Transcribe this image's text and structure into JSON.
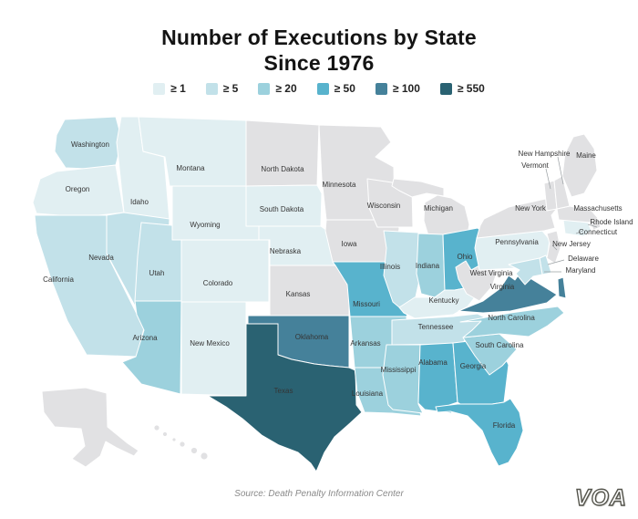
{
  "title": {
    "line1": "Number of Executions by State",
    "line2": "Since 1976"
  },
  "legend": [
    {
      "label": "≥ 1",
      "color": "#e1eff2"
    },
    {
      "label": "≥ 5",
      "color": "#c2e1e9"
    },
    {
      "label": "≥ 20",
      "color": "#9cd1dd"
    },
    {
      "label": "≥ 50",
      "color": "#58b3cd"
    },
    {
      "label": "≥ 100",
      "color": "#45819a"
    },
    {
      "label": "≥ 550",
      "color": "#2a6272"
    }
  ],
  "source": "Source: Death Penalty Information Center",
  "watermark": "VOA",
  "page_background": "#ffffff",
  "chart_data": {
    "type": "choropleth-map",
    "title": "Number of Executions by State Since 1976",
    "legend_buckets": [
      "≥ 1",
      "≥ 5",
      "≥ 20",
      "≥ 50",
      "≥ 100",
      "≥ 550"
    ],
    "no_data_color": "#e1e1e3",
    "border_color": "#ffffff",
    "states": [
      {
        "id": "WA",
        "name": "Washington",
        "bucket": "≥ 5"
      },
      {
        "id": "OR",
        "name": "Oregon",
        "bucket": "≥ 1"
      },
      {
        "id": "CA",
        "name": "California",
        "bucket": "≥ 5"
      },
      {
        "id": "ID",
        "name": "Idaho",
        "bucket": "≥ 1"
      },
      {
        "id": "NV",
        "name": "Nevada",
        "bucket": "≥ 5"
      },
      {
        "id": "UT",
        "name": "Utah",
        "bucket": "≥ 5"
      },
      {
        "id": "AZ",
        "name": "Arizona",
        "bucket": "≥ 20"
      },
      {
        "id": "MT",
        "name": "Montana",
        "bucket": "≥ 1"
      },
      {
        "id": "WY",
        "name": "Wyoming",
        "bucket": "≥ 1"
      },
      {
        "id": "CO",
        "name": "Colorado",
        "bucket": "≥ 1"
      },
      {
        "id": "NM",
        "name": "New Mexico",
        "bucket": "≥ 1"
      },
      {
        "id": "ND",
        "name": "North Dakota",
        "bucket": "none"
      },
      {
        "id": "SD",
        "name": "South Dakota",
        "bucket": "≥ 1"
      },
      {
        "id": "NE",
        "name": "Nebraska",
        "bucket": "≥ 1"
      },
      {
        "id": "KS",
        "name": "Kansas",
        "bucket": "none"
      },
      {
        "id": "OK",
        "name": "Oklahoma",
        "bucket": "≥ 100"
      },
      {
        "id": "TX",
        "name": "Texas",
        "bucket": "≥ 550"
      },
      {
        "id": "MN",
        "name": "Minnesota",
        "bucket": "none"
      },
      {
        "id": "IA",
        "name": "Iowa",
        "bucket": "none"
      },
      {
        "id": "MO",
        "name": "Missouri",
        "bucket": "≥ 50"
      },
      {
        "id": "AR",
        "name": "Arkansas",
        "bucket": "≥ 20"
      },
      {
        "id": "LA",
        "name": "Louisiana",
        "bucket": "≥ 20"
      },
      {
        "id": "WI",
        "name": "Wisconsin",
        "bucket": "none"
      },
      {
        "id": "IL",
        "name": "Illinois",
        "bucket": "≥ 5"
      },
      {
        "id": "MI",
        "name": "Michigan",
        "bucket": "none"
      },
      {
        "id": "IN",
        "name": "Indiana",
        "bucket": "≥ 20"
      },
      {
        "id": "OH",
        "name": "Ohio",
        "bucket": "≥ 50"
      },
      {
        "id": "KY",
        "name": "Kentucky",
        "bucket": "≥ 1"
      },
      {
        "id": "TN",
        "name": "Tennessee",
        "bucket": "≥ 5"
      },
      {
        "id": "MS",
        "name": "Mississippi",
        "bucket": "≥ 20"
      },
      {
        "id": "AL",
        "name": "Alabama",
        "bucket": "≥ 50"
      },
      {
        "id": "GA",
        "name": "Georgia",
        "bucket": "≥ 50"
      },
      {
        "id": "FL",
        "name": "Florida",
        "bucket": "≥ 50"
      },
      {
        "id": "SC",
        "name": "South Carolina",
        "bucket": "≥ 20"
      },
      {
        "id": "NC",
        "name": "North Carolina",
        "bucket": "≥ 20"
      },
      {
        "id": "VA",
        "name": "Virginia",
        "bucket": "≥ 100"
      },
      {
        "id": "WV",
        "name": "West Virginia",
        "bucket": "none"
      },
      {
        "id": "PA",
        "name": "Pennsylvania",
        "bucket": "≥ 1"
      },
      {
        "id": "NY",
        "name": "New York",
        "bucket": "none"
      },
      {
        "id": "NJ",
        "name": "New Jersey",
        "bucket": "none"
      },
      {
        "id": "DE",
        "name": "Delaware",
        "bucket": "≥ 5"
      },
      {
        "id": "MD",
        "name": "Maryland",
        "bucket": "≥ 5"
      },
      {
        "id": "CT",
        "name": "Connecticut",
        "bucket": "≥ 1"
      },
      {
        "id": "RI",
        "name": "Rhode Island",
        "bucket": "none"
      },
      {
        "id": "MA",
        "name": "Massachusetts",
        "bucket": "none"
      },
      {
        "id": "VT",
        "name": "Vermont",
        "bucket": "none"
      },
      {
        "id": "NH",
        "name": "New Hampshire",
        "bucket": "none"
      },
      {
        "id": "ME",
        "name": "Maine",
        "bucket": "none"
      },
      {
        "id": "AK",
        "name": "",
        "bucket": "none"
      },
      {
        "id": "HI",
        "name": "",
        "bucket": "none"
      }
    ]
  }
}
